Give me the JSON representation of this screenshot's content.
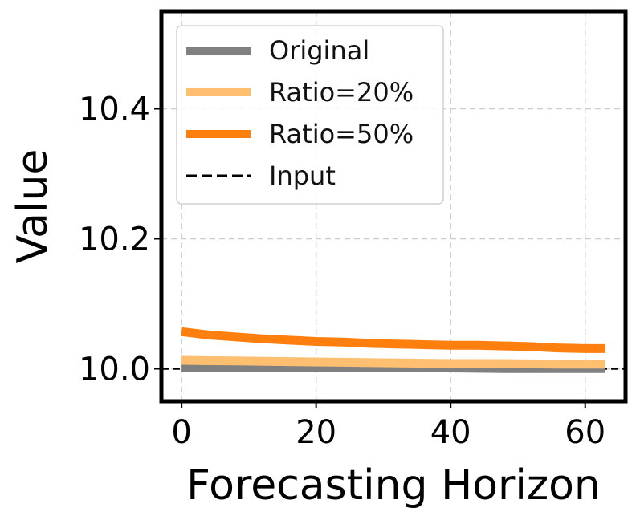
{
  "chart_data": {
    "type": "line",
    "title": "",
    "xlabel": "Forecasting Horizon",
    "ylabel": "Value",
    "xlim": [
      -3,
      66
    ],
    "ylim": [
      9.95,
      10.55
    ],
    "xticks": [
      0,
      20,
      40,
      60
    ],
    "xtick_labels": [
      "0",
      "20",
      "40",
      "60"
    ],
    "yticks": [
      10.0,
      10.2,
      10.4
    ],
    "ytick_labels": [
      "10.0",
      "10.2",
      "10.4"
    ],
    "grid": true,
    "legend_position": "top-left",
    "series": [
      {
        "name": "Original",
        "color": "#808080",
        "style": "solid",
        "x": [
          0,
          8,
          16,
          24,
          32,
          40,
          48,
          56,
          63
        ],
        "y": [
          10.001,
          10.001,
          10.0,
          10.0,
          10.0,
          10.0,
          9.999,
          9.999,
          9.999
        ]
      },
      {
        "name": "Ratio=20%",
        "color": "#ffbf70",
        "style": "solid",
        "x": [
          0,
          8,
          16,
          24,
          32,
          40,
          48,
          56,
          63
        ],
        "y": [
          10.013,
          10.012,
          10.011,
          10.01,
          10.009,
          10.008,
          10.008,
          10.007,
          10.007
        ]
      },
      {
        "name": "Ratio=50%",
        "color": "#ff7f0e",
        "style": "solid",
        "x": [
          0,
          4,
          8,
          12,
          16,
          20,
          24,
          28,
          32,
          36,
          40,
          44,
          48,
          52,
          56,
          60,
          63
        ],
        "y": [
          10.057,
          10.052,
          10.049,
          10.046,
          10.044,
          10.042,
          10.041,
          10.039,
          10.038,
          10.037,
          10.036,
          10.036,
          10.035,
          10.034,
          10.032,
          10.031,
          10.031
        ]
      },
      {
        "name": "Input",
        "color": "#000000",
        "style": "dashed",
        "x": [
          -3,
          66
        ],
        "y": [
          10.0,
          10.0
        ]
      }
    ]
  }
}
